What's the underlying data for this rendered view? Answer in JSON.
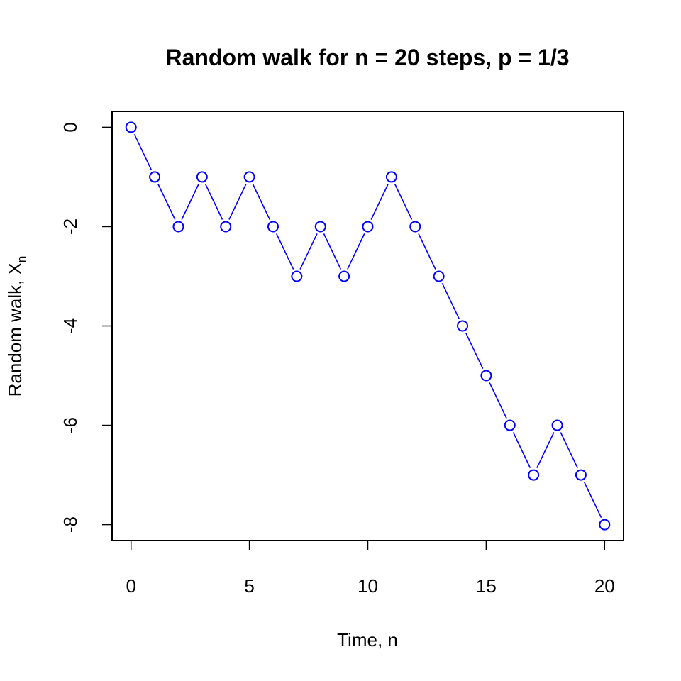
{
  "chart_data": {
    "type": "line",
    "title": "Random walk for n = 20 steps, p = 1/3",
    "xlabel": "Time, n",
    "ylabel": "Random walk, X",
    "ylabel_subscript": "n",
    "x": [
      0,
      1,
      2,
      3,
      4,
      5,
      6,
      7,
      8,
      9,
      10,
      11,
      12,
      13,
      14,
      15,
      16,
      17,
      18,
      19,
      20
    ],
    "series": [
      {
        "values": [
          0,
          -1,
          -2,
          -1,
          -2,
          -1,
          -2,
          -3,
          -2,
          -3,
          -2,
          -1,
          -2,
          -3,
          -4,
          -5,
          -6,
          -7,
          -6,
          -7,
          -8
        ]
      }
    ],
    "xticks": [
      0,
      5,
      10,
      15,
      20
    ],
    "yticks": [
      0,
      -2,
      -4,
      -6,
      -8
    ],
    "xlim": [
      -0.8,
      20.8
    ],
    "ylim": [
      -8.32,
      0.32
    ],
    "marker": "open-circle",
    "line_color": "#0000ff",
    "grid": false
  }
}
